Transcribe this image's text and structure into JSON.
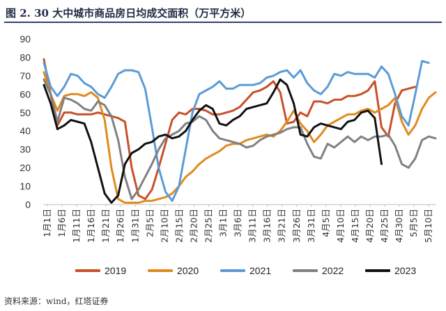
{
  "title": "图 2. 30 大中城市商品房日均成交面积（万平方米）",
  "source": "资料来源：wind，红塔证券",
  "chart_data": {
    "type": "line",
    "title": "图 2. 30 大中城市商品房日均成交面积（万平方米）",
    "xlabel": "",
    "ylabel": "",
    "ylim": [
      0,
      90
    ],
    "yticks": [
      0,
      10,
      20,
      30,
      40,
      50,
      60,
      70,
      80,
      90
    ],
    "legend_position": "bottom",
    "x_tick_labels": [
      "1月1日",
      "1月6日",
      "1月11日",
      "1月16日",
      "1月21日",
      "1月26日",
      "1月31日",
      "2月5日",
      "2月10日",
      "2月15日",
      "2月20日",
      "2月25日",
      "3月1日",
      "3月6日",
      "3月11日",
      "3月16日",
      "3月21日",
      "3月26日",
      "3月31日",
      "4月5日",
      "4月10日",
      "4月15日",
      "4月20日",
      "4月25日",
      "4月30日",
      "5月5日",
      "5月10日"
    ],
    "series": [
      {
        "name": "2019",
        "color": "#c8502a",
        "values": [
          79,
          60,
          43,
          50,
          50,
          49,
          49,
          49,
          50,
          49,
          48,
          47,
          45,
          20,
          5,
          3,
          8,
          20,
          33,
          46,
          50,
          49,
          52,
          52,
          51,
          49,
          49,
          50,
          51,
          53,
          57,
          61,
          62,
          64,
          67,
          61,
          44,
          45,
          50,
          48,
          56,
          56,
          55,
          57,
          57,
          59,
          59,
          60,
          62,
          67,
          42,
          37,
          55,
          62,
          63,
          64
        ]
      },
      {
        "name": "2020",
        "color": "#e08a1e",
        "values": [
          72,
          60,
          51,
          59,
          60,
          60,
          59,
          61,
          58,
          46,
          20,
          3,
          1,
          1,
          1,
          2,
          2,
          3,
          4,
          6,
          10,
          15,
          18,
          22,
          25,
          27,
          29,
          32,
          33,
          33,
          35,
          36,
          37,
          38,
          37,
          40,
          45,
          51,
          44,
          40,
          34,
          38,
          43,
          45,
          47,
          49,
          49,
          51,
          52,
          50,
          52,
          54,
          58,
          45,
          38,
          43,
          52,
          58,
          61
        ]
      },
      {
        "name": "2021",
        "color": "#5b9bd5",
        "values": [
          77,
          64,
          59,
          64,
          71,
          70,
          66,
          64,
          60,
          58,
          64,
          71,
          73,
          73,
          72,
          63,
          42,
          20,
          7,
          2,
          10,
          30,
          50,
          60,
          62,
          64,
          67,
          63,
          63,
          65,
          65,
          65,
          66,
          69,
          70,
          72,
          73,
          69,
          73,
          66,
          62,
          60,
          64,
          71,
          70,
          72,
          71,
          71,
          71,
          69,
          75,
          71,
          60,
          48,
          43,
          60,
          78,
          77
        ]
      },
      {
        "name": "2022",
        "color": "#808080",
        "values": [
          68,
          60,
          45,
          58,
          57,
          55,
          52,
          51,
          56,
          54,
          48,
          35,
          15,
          3,
          8,
          15,
          22,
          30,
          36,
          38,
          40,
          44,
          45,
          48,
          46,
          40,
          36,
          35,
          34,
          33,
          31,
          32,
          35,
          37,
          38,
          39,
          41,
          42,
          42,
          33,
          26,
          25,
          33,
          31,
          34,
          37,
          34,
          37,
          35,
          37,
          37,
          38,
          32,
          22,
          20,
          25,
          35,
          37,
          36
        ]
      },
      {
        "name": "2023",
        "color": "#111111",
        "values": [
          65,
          55,
          41,
          43,
          46,
          45,
          44,
          34,
          20,
          6,
          1,
          5,
          22,
          28,
          30,
          33,
          34,
          37,
          38,
          36,
          37,
          40,
          46,
          51,
          54,
          52,
          44,
          43,
          46,
          48,
          52,
          53,
          54,
          55,
          61,
          68,
          65,
          55,
          38,
          37,
          42,
          44,
          43,
          42,
          41,
          45,
          46,
          50,
          51,
          47,
          22
        ]
      }
    ]
  }
}
